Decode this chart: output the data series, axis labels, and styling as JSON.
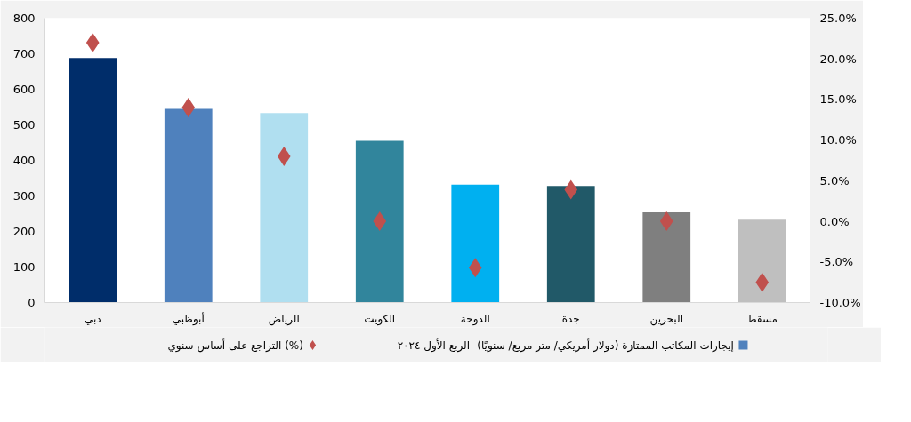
{
  "chart_data": {
    "type": "bar",
    "categories": [
      "دبي",
      "أبوظبي",
      "الرياض",
      "الكويت",
      "الدوحة",
      "جدة",
      "البحرين",
      "مسقط"
    ],
    "series": [
      {
        "name": "إيجارات المكاتب الممتازة (دولار أمريكي/ متر مربع/ سنويًا)- الربع الأول ٢٠٢٤",
        "color": "#4f81bd",
        "colors": [
          "#002d6a",
          "#4f81bd",
          "#b0dff0",
          "#31859c",
          "#00b0f0",
          "#215968",
          "#7f7f7f",
          "#bfbfbf"
        ],
        "values": [
          688,
          545,
          533,
          455,
          332,
          328,
          254,
          233
        ]
      },
      {
        "name": "التراجع على أساس سنوي (%)",
        "type": "scatter",
        "axis": "y2",
        "marker": "diamond",
        "color": "#c0504d",
        "values": [
          22.0,
          14.0,
          8.0,
          0.0,
          -5.7,
          3.9,
          0.0,
          -7.5
        ]
      }
    ],
    "ylim": [
      0,
      800
    ],
    "yticks": [
      0,
      100,
      200,
      300,
      400,
      500,
      600,
      700,
      800
    ],
    "y2lim": [
      -10,
      25
    ],
    "y2ticks": [
      {
        "value": -10,
        "label": "-10.0%"
      },
      {
        "value": -5,
        "label": "-5.0%"
      },
      {
        "value": 0,
        "label": "0.0%"
      },
      {
        "value": 5,
        "label": "5.0%"
      },
      {
        "value": 10,
        "label": "10.0%"
      },
      {
        "value": 15,
        "label": "15.0%"
      },
      {
        "value": 20,
        "label": "20.0%"
      },
      {
        "value": 25,
        "label": "25.0%"
      }
    ],
    "grid": false,
    "legend": "bottom"
  }
}
